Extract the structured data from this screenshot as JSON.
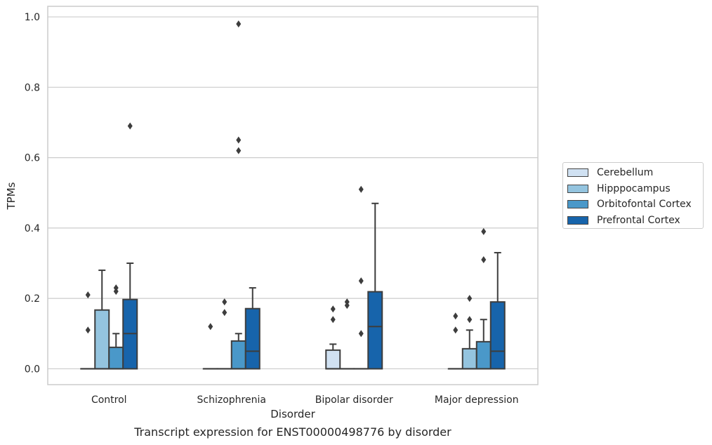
{
  "caption": "Transcript expression for ENST00000498776 by disorder",
  "chart_data": {
    "type": "box",
    "xlabel": "Disorder",
    "ylabel": "TPMs",
    "ylim": [
      -0.045,
      1.03
    ],
    "yticks": [
      0.0,
      0.2,
      0.4,
      0.6,
      0.8,
      1.0
    ],
    "ytick_labels": [
      "0.0",
      "0.2",
      "0.4",
      "0.6",
      "0.8",
      "1.0"
    ],
    "grid": "horizontal",
    "legend_position": "right",
    "categories": [
      "Control",
      "Schizophrenia",
      "Bipolar disorder",
      "Major depression"
    ],
    "series": [
      {
        "name": "Cerebellum",
        "color": "#d0e1f2",
        "boxes": [
          {
            "q1": 0,
            "median": 0,
            "q3": 0,
            "whisker_low": 0,
            "whisker_high": 0,
            "outliers": [
              0.11,
              0.21
            ]
          },
          {
            "q1": 0,
            "median": 0,
            "q3": 0,
            "whisker_low": 0,
            "whisker_high": 0,
            "outliers": [
              0.12
            ]
          },
          {
            "q1": 0,
            "median": 0,
            "q3": 0.053,
            "whisker_low": 0,
            "whisker_high": 0.07,
            "outliers": [
              0.14,
              0.17
            ]
          },
          {
            "q1": 0,
            "median": 0,
            "q3": 0,
            "whisker_low": 0,
            "whisker_high": 0,
            "outliers": [
              0.11,
              0.15
            ]
          }
        ]
      },
      {
        "name": "Hipppocampus",
        "color": "#94c4df",
        "boxes": [
          {
            "q1": 0,
            "median": 0,
            "q3": 0.167,
            "whisker_low": 0,
            "whisker_high": 0.28,
            "outliers": []
          },
          {
            "q1": 0,
            "median": 0,
            "q3": 0,
            "whisker_low": 0,
            "whisker_high": 0,
            "outliers": [
              0.16,
              0.19
            ]
          },
          {
            "q1": 0,
            "median": 0,
            "q3": 0,
            "whisker_low": 0,
            "whisker_high": 0,
            "outliers": [
              0.18,
              0.19
            ]
          },
          {
            "q1": 0,
            "median": 0,
            "q3": 0.057,
            "whisker_low": 0,
            "whisker_high": 0.11,
            "outliers": [
              0.14,
              0.2
            ]
          }
        ]
      },
      {
        "name": "Orbitofontal Cortex",
        "color": "#4a98c9",
        "boxes": [
          {
            "q1": 0,
            "median": 0,
            "q3": 0.061,
            "whisker_low": 0,
            "whisker_high": 0.1,
            "outliers": [
              0.22,
              0.23
            ]
          },
          {
            "q1": 0,
            "median": 0,
            "q3": 0.079,
            "whisker_low": 0,
            "whisker_high": 0.1,
            "outliers": [
              0.62,
              0.65,
              0.98
            ]
          },
          {
            "q1": 0,
            "median": 0,
            "q3": 0,
            "whisker_low": 0,
            "whisker_high": 0,
            "outliers": [
              0.1,
              0.25,
              0.51
            ]
          },
          {
            "q1": 0,
            "median": 0,
            "q3": 0.077,
            "whisker_low": 0,
            "whisker_high": 0.14,
            "outliers": [
              0.31,
              0.39
            ]
          }
        ]
      },
      {
        "name": "Prefrontal Cortex",
        "color": "#1764ab",
        "boxes": [
          {
            "q1": 0,
            "median": 0.1,
            "q3": 0.197,
            "whisker_low": 0,
            "whisker_high": 0.3,
            "outliers": [
              0.69
            ]
          },
          {
            "q1": 0,
            "median": 0.05,
            "q3": 0.171,
            "whisker_low": 0,
            "whisker_high": 0.23,
            "outliers": []
          },
          {
            "q1": 0,
            "median": 0.12,
            "q3": 0.219,
            "whisker_low": 0,
            "whisker_high": 0.47,
            "outliers": []
          },
          {
            "q1": 0,
            "median": 0.05,
            "q3": 0.19,
            "whisker_low": 0,
            "whisker_high": 0.33,
            "outliers": []
          }
        ]
      }
    ]
  }
}
